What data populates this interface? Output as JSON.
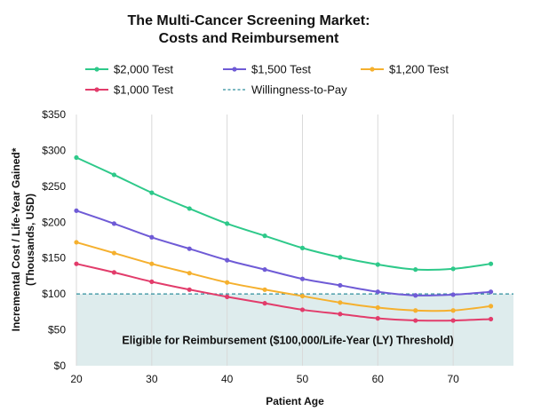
{
  "chart_data": {
    "type": "line",
    "title_lines": [
      "The Multi-Cancer Screening Market:",
      "Costs and Reimbursement"
    ],
    "xlabel": "Patient Age",
    "ylabel_lines": [
      "Incremental Cost / Life-Year Gained*",
      "(Thousands, USD)"
    ],
    "xlim": [
      20,
      78
    ],
    "ylim": [
      0,
      350
    ],
    "x_ticks": [
      20,
      30,
      40,
      50,
      60,
      70
    ],
    "y_ticks": [
      0,
      50,
      100,
      150,
      200,
      250,
      300,
      350
    ],
    "y_tick_labels": [
      "$0",
      "$50",
      "$100",
      "$150",
      "$200",
      "$250",
      "$300",
      "$350"
    ],
    "grid": "vertical",
    "legend_position": "top",
    "x": [
      20,
      25,
      30,
      35,
      40,
      45,
      50,
      55,
      60,
      65,
      70,
      75
    ],
    "series": [
      {
        "name": "$2,000 Test",
        "color": "#2ec98a",
        "values": [
          290,
          266,
          241,
          219,
          198,
          181,
          164,
          151,
          141,
          134,
          135,
          142
        ]
      },
      {
        "name": "$1,500 Test",
        "color": "#6f5bd6",
        "values": [
          216,
          198,
          179,
          163,
          147,
          134,
          121,
          112,
          103,
          98,
          99,
          103
        ]
      },
      {
        "name": "$1,200 Test",
        "color": "#f5b02e",
        "values": [
          172,
          157,
          142,
          129,
          116,
          106,
          97,
          88,
          81,
          77,
          77,
          83
        ]
      },
      {
        "name": "$1,000 Test",
        "color": "#e23c6b",
        "values": [
          142,
          130,
          117,
          106,
          96,
          87,
          78,
          72,
          66,
          63,
          63,
          65
        ]
      }
    ],
    "reference_line": {
      "name": "Willingness-to-Pay",
      "y": 100,
      "color": "#2f8f9d",
      "style": "dashed"
    },
    "shaded_region": {
      "label": "Eligible for Reimbursement ($100,000/Life-Year (LY) Threshold)",
      "y_range": [
        0,
        100
      ],
      "color": "#deeced"
    }
  }
}
